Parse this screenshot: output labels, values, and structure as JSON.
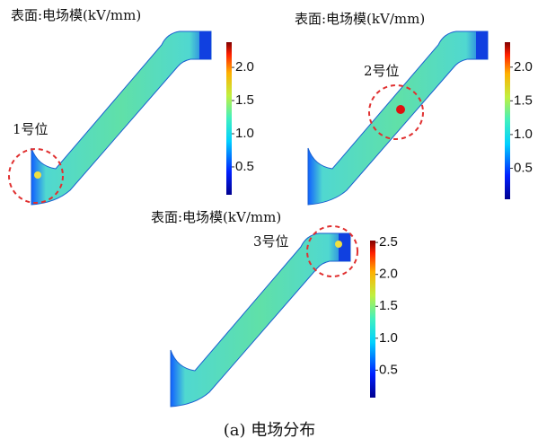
{
  "panels": [
    {
      "title": "表面:电场模(kV/mm)",
      "marker_label": "1号位",
      "colorbar": {
        "lim": [
          0.08,
          2.38
        ],
        "ticks": [
          {
            "value": 0.5,
            "label": "0.5"
          },
          {
            "value": 1,
            "label": "1.0"
          },
          {
            "value": 1.5,
            "label": "1.5"
          },
          {
            "value": 2,
            "label": "2.0"
          }
        ]
      }
    },
    {
      "title": "表面:电场模(kV/mm)",
      "marker_label": "2号位",
      "colorbar": {
        "lim": [
          0.04,
          2.37
        ],
        "ticks": [
          {
            "value": 0.5,
            "label": "0.5"
          },
          {
            "value": 1,
            "label": "1.0"
          },
          {
            "value": 1.5,
            "label": "1.5"
          },
          {
            "value": 2,
            "label": "2.0"
          }
        ]
      }
    },
    {
      "title": "表面:电场模(kV/mm)",
      "marker_label": "3号位",
      "colorbar": {
        "lim": [
          0.07,
          2.53
        ],
        "ticks": [
          {
            "value": 0.5,
            "label": "0.5"
          },
          {
            "value": 1,
            "label": "1.0"
          },
          {
            "value": 1.5,
            "label": "1.5"
          },
          {
            "value": 2,
            "label": "2.0"
          },
          {
            "value": 2.5,
            "label": "2.5"
          }
        ]
      }
    }
  ],
  "caption": "(a) 电场分布"
}
